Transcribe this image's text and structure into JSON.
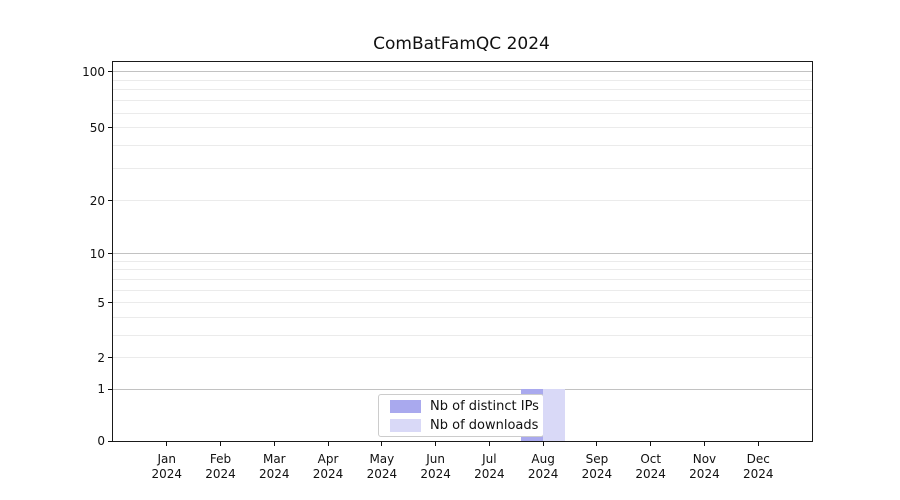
{
  "chart_data": {
    "type": "bar",
    "title": "ComBatFamQC 2024",
    "x_axis": {
      "months": [
        "Jan",
        "Feb",
        "Mar",
        "Apr",
        "May",
        "Jun",
        "Jul",
        "Aug",
        "Sep",
        "Oct",
        "Nov",
        "Dec"
      ],
      "year": "2024"
    },
    "y_axis": {
      "labeled_ticks": [
        0,
        1,
        2,
        5,
        10,
        20,
        50,
        100
      ],
      "major_gridlines": [
        1,
        10,
        100
      ],
      "minor_gridlines": [
        2,
        3,
        4,
        5,
        6,
        7,
        8,
        9,
        20,
        30,
        40,
        50,
        60,
        70,
        80,
        90
      ],
      "scale": "log-like (log10(1+x))",
      "ylim": [
        0,
        112
      ]
    },
    "series": [
      {
        "name": "Nb of distinct IPs",
        "color": "#a9a9ee",
        "values": [
          0,
          0,
          0,
          0,
          0,
          0,
          0,
          1,
          0,
          0,
          0,
          0
        ]
      },
      {
        "name": "Nb of downloads",
        "color": "#d9d9f7",
        "values": [
          0,
          0,
          0,
          0,
          0,
          0,
          0,
          1,
          0,
          0,
          0,
          0
        ]
      }
    ],
    "legend": {
      "position": "bottom-center",
      "entries": [
        "Nb of distinct IPs",
        "Nb of downloads"
      ]
    },
    "grid": "on",
    "xlabel": "",
    "ylabel": ""
  }
}
